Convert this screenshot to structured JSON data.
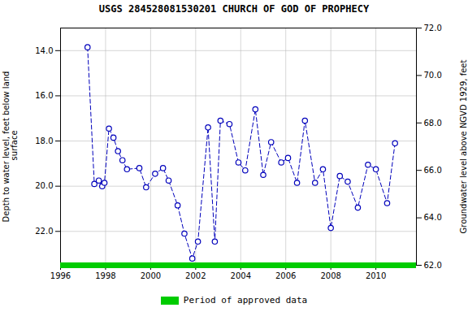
{
  "chart_data": {
    "type": "line",
    "title": "USGS 284528081530201 CHURCH OF GOD OF PROPHECY",
    "ylabel": "Depth to water level, feet below land\n surface",
    "y2label": "Groundwater level above NGVD 1929, feet",
    "x": [
      1997.2,
      1997.5,
      1997.7,
      1997.85,
      1997.95,
      1998.15,
      1998.35,
      1998.55,
      1998.75,
      1998.95,
      1999.5,
      1999.8,
      2000.2,
      2000.55,
      2000.8,
      2001.2,
      2001.5,
      2001.85,
      2002.1,
      2002.55,
      2002.85,
      2003.1,
      2003.5,
      2003.9,
      2004.2,
      2004.65,
      2005.0,
      2005.35,
      2005.8,
      2006.1,
      2006.5,
      2006.85,
      2007.3,
      2007.65,
      2008.0,
      2008.4,
      2008.75,
      2009.2,
      2009.65,
      2010.0,
      2010.5,
      2010.85
    ],
    "series": [
      {
        "color": "#0000bb",
        "marker": "o",
        "line_style": "dashed",
        "values": [
          13.85,
          19.9,
          19.75,
          20.0,
          19.85,
          17.45,
          17.85,
          18.45,
          18.85,
          19.25,
          19.2,
          20.05,
          19.45,
          19.2,
          19.75,
          20.85,
          22.1,
          23.2,
          22.45,
          17.4,
          22.45,
          17.1,
          17.25,
          18.95,
          19.3,
          16.6,
          19.5,
          18.05,
          18.95,
          18.75,
          19.85,
          17.1,
          19.85,
          19.25,
          21.85,
          19.55,
          19.8,
          20.95,
          19.05,
          19.25,
          20.75,
          18.1
        ]
      }
    ],
    "xlim": [
      1996,
      2011.8
    ],
    "xticks": [
      1996,
      1998,
      2000,
      2002,
      2004,
      2006,
      2008,
      2010
    ],
    "ylim": [
      23.5,
      13.0
    ],
    "yticks": [
      {
        "value": 14.0,
        "label": "14.0"
      },
      {
        "value": 16.0,
        "label": "16.0"
      },
      {
        "value": 18.0,
        "label": "18.0"
      },
      {
        "value": 20.0,
        "label": "20.0"
      },
      {
        "value": 22.0,
        "label": "22.0"
      }
    ],
    "y2lim": [
      62.0,
      72.0
    ],
    "y2ticks": [
      {
        "value": 62.0,
        "label": "62.0"
      },
      {
        "value": 64.0,
        "label": "64.0"
      },
      {
        "value": 66.0,
        "label": "66.0"
      },
      {
        "value": 68.0,
        "label": "68.0"
      },
      {
        "value": 70.0,
        "label": "70.0"
      },
      {
        "value": 72.0,
        "label": "72.0"
      }
    ],
    "grid": true,
    "annotations": [
      {
        "text": "Period of approved data",
        "color": "#00cc00"
      }
    ]
  }
}
